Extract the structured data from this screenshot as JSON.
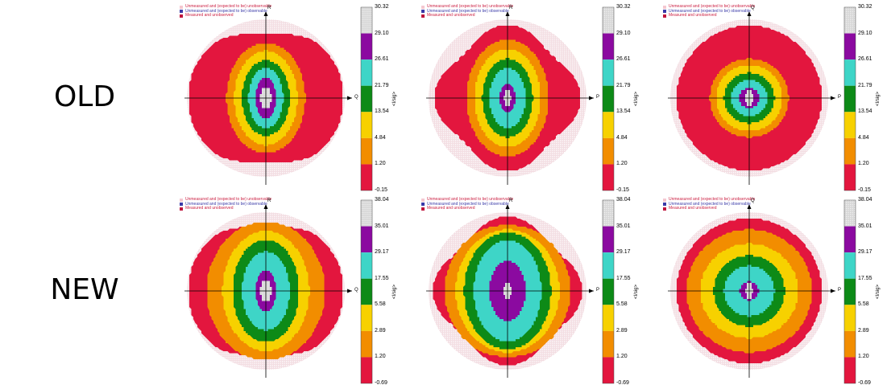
{
  "row_labels": [
    "OLD",
    "NEW"
  ],
  "legend_entries": [
    {
      "text": "Unmeasured and (expected to be) unobservable",
      "color": "#f4c7d0",
      "text_color": "#cc2244"
    },
    {
      "text": "Unmeasured and (expected to be) observable",
      "color": "#3a3aa8",
      "text_color": "#3a3aa8"
    },
    {
      "text": "Measured and unobserved",
      "color": "#c0143c",
      "text_color": "#cc2244"
    }
  ],
  "colorbar_unit": "<I/sig>",
  "zone_colors": [
    "#e3163e",
    "#f28d00",
    "#f7d100",
    "#0d8a17",
    "#3ed5c7",
    "#8b0aa0",
    "#d7d2d2"
  ],
  "rim_color": "#f3dde2",
  "panels": [
    {
      "row": 0,
      "col": 0,
      "axis_v": "R",
      "axis_h": "Q",
      "ticks": [
        "30.32",
        "29.10",
        "26.61",
        "21.79",
        "13.54",
        "4.84",
        "1.20",
        "-0.15"
      ],
      "shape": "lobes",
      "zones": [
        [
          0.98,
          0.98
        ],
        [
          0.5,
          0.7
        ],
        [
          0.4,
          0.6
        ],
        [
          0.3,
          0.48
        ],
        [
          0.22,
          0.38
        ],
        [
          0.13,
          0.26
        ],
        [
          0.07,
          0.14
        ]
      ]
    },
    {
      "row": 0,
      "col": 1,
      "axis_v": "R",
      "axis_h": "P",
      "ticks": [
        "30.32",
        "29.10",
        "26.61",
        "21.79",
        "13.54",
        "4.84",
        "1.20",
        "-0.15"
      ],
      "shape": "wing",
      "zones": [
        [
          0.93,
          0.93
        ],
        [
          0.52,
          0.74
        ],
        [
          0.42,
          0.62
        ],
        [
          0.32,
          0.5
        ],
        [
          0.23,
          0.38
        ],
        [
          0.1,
          0.18
        ],
        [
          0.04,
          0.07
        ]
      ]
    },
    {
      "row": 0,
      "col": 2,
      "axis_v": "Q",
      "axis_h": "P",
      "ticks": [
        "30.32",
        "29.10",
        "26.61",
        "21.79",
        "13.54",
        "4.84",
        "1.20",
        "-0.15"
      ],
      "shape": "round",
      "zones": [
        [
          0.92,
          0.92
        ],
        [
          0.5,
          0.5
        ],
        [
          0.42,
          0.42
        ],
        [
          0.32,
          0.32
        ],
        [
          0.23,
          0.23
        ],
        [
          0.13,
          0.13
        ],
        [
          0.06,
          0.06
        ]
      ]
    },
    {
      "row": 1,
      "col": 0,
      "axis_v": "R",
      "axis_h": "Q",
      "ticks": [
        "38.04",
        "35.01",
        "29.17",
        "17.55",
        "5.58",
        "2.89",
        "1.20",
        "-0.69"
      ],
      "shape": "lobes",
      "zones": [
        [
          0.98,
          0.98
        ],
        [
          0.75,
          0.88
        ],
        [
          0.55,
          0.76
        ],
        [
          0.42,
          0.65
        ],
        [
          0.3,
          0.5
        ],
        [
          0.13,
          0.26
        ],
        [
          0.07,
          0.14
        ]
      ]
    },
    {
      "row": 1,
      "col": 1,
      "axis_v": "R",
      "axis_h": "P",
      "ticks": [
        "38.04",
        "35.01",
        "29.17",
        "17.55",
        "5.58",
        "2.89",
        "1.20",
        "-0.69"
      ],
      "shape": "wing",
      "zones": [
        [
          0.95,
          0.95
        ],
        [
          0.8,
          0.84
        ],
        [
          0.66,
          0.78
        ],
        [
          0.55,
          0.74
        ],
        [
          0.43,
          0.64
        ],
        [
          0.23,
          0.38
        ],
        [
          0.05,
          0.08
        ]
      ]
    },
    {
      "row": 1,
      "col": 2,
      "axis_v": "Q",
      "axis_h": "P",
      "ticks": [
        "38.04",
        "35.01",
        "29.17",
        "17.55",
        "5.58",
        "2.89",
        "1.20",
        "-0.69"
      ],
      "shape": "round",
      "zones": [
        [
          0.92,
          0.92
        ],
        [
          0.8,
          0.78
        ],
        [
          0.62,
          0.6
        ],
        [
          0.45,
          0.45
        ],
        [
          0.32,
          0.32
        ],
        [
          0.12,
          0.12
        ],
        [
          0.05,
          0.05
        ]
      ]
    }
  ]
}
